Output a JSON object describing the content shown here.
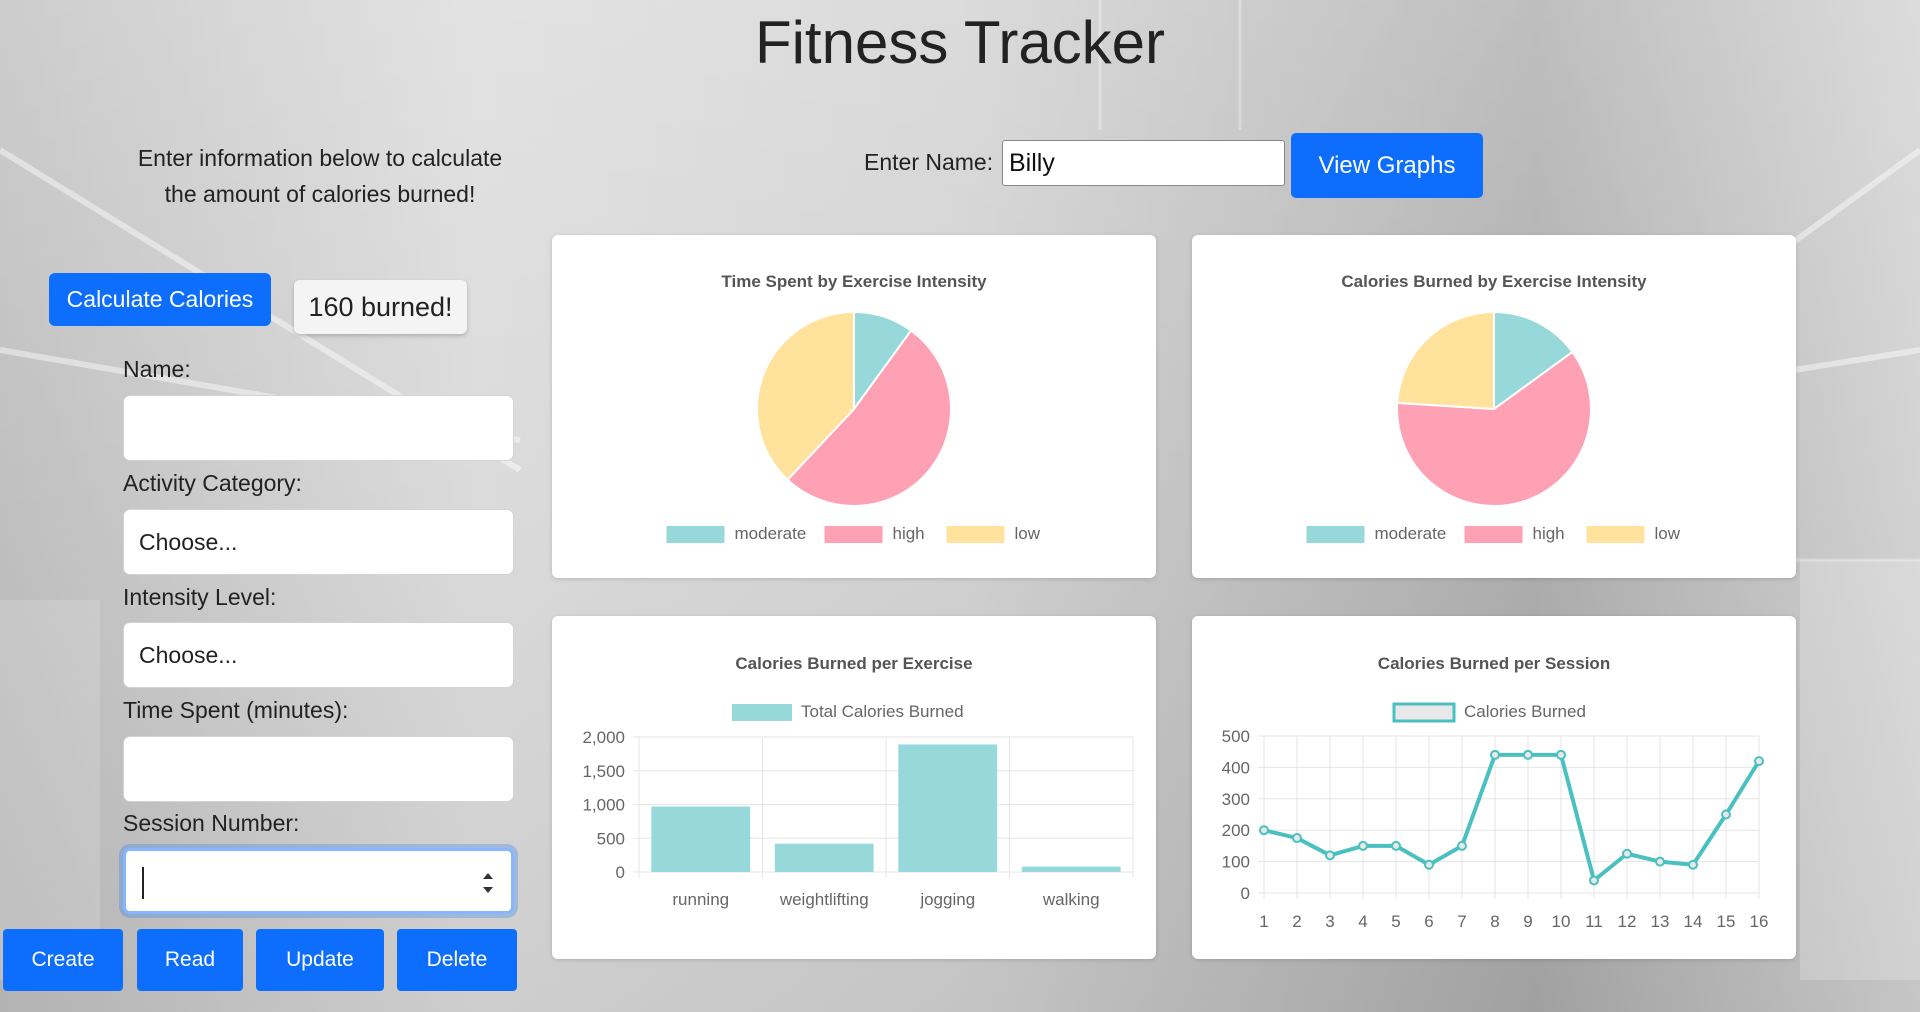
{
  "page": {
    "title": "Fitness Tracker"
  },
  "form": {
    "instructions_line1": "Enter information below to calculate",
    "instructions_line2": "the amount of calories burned!",
    "calculate_label": "Calculate Calories",
    "result_text": "160 burned!",
    "name_label": "Name:",
    "name_value": "",
    "activity_label": "Activity Category:",
    "activity_value": "Choose...",
    "intensity_label": "Intensity Level:",
    "intensity_value": "Choose...",
    "time_label": "Time Spent (minutes):",
    "time_value": "",
    "session_label": "Session Number:",
    "session_value": ""
  },
  "crud": {
    "create": "Create",
    "read": "Read",
    "update": "Update",
    "delete": "Delete"
  },
  "lookup": {
    "label": "Enter Name:",
    "value": "Billy",
    "button": "View Graphs"
  },
  "colors": {
    "teal": "#4bc0c0",
    "teal_fill": "rgba(75,192,192,0.6)",
    "pink": "#ff6384",
    "yellow": "#ffcd56",
    "primary": "#0d6efd"
  },
  "chart_data": [
    {
      "type": "pie",
      "title": "Time Spent by Exercise Intensity",
      "labels": [
        "moderate",
        "high",
        "low"
      ],
      "values": [
        10,
        52,
        38
      ],
      "colors": [
        "#97d9db",
        "#ffa1b4",
        "#ffe29b"
      ],
      "legend": "top-below-title"
    },
    {
      "type": "pie",
      "title": "Calories Burned by Exercise Intensity",
      "labels": [
        "moderate",
        "high",
        "low"
      ],
      "values": [
        15,
        61,
        24
      ],
      "colors": [
        "#97d9db",
        "#ffa1b4",
        "#ffe29b"
      ],
      "legend": "bottom"
    },
    {
      "type": "bar",
      "title": "Calories Burned per Exercise",
      "series_name": "Total Calories Burned",
      "categories": [
        "running",
        "weightlifting",
        "jogging",
        "walking"
      ],
      "values": [
        970,
        420,
        1890,
        80
      ],
      "ylim": [
        0,
        2000
      ],
      "yticks": [
        "2,000",
        "1,500",
        "1,000",
        "500",
        "0"
      ],
      "ytick_values": [
        2000,
        1500,
        1000,
        500,
        0
      ],
      "grid": true,
      "legend": "top"
    },
    {
      "type": "line",
      "title": "Calories Burned per Session",
      "series_name": "Calories Burned",
      "x": [
        "1",
        "2",
        "3",
        "4",
        "5",
        "6",
        "7",
        "8",
        "9",
        "10",
        "11",
        "12",
        "13",
        "14",
        "15",
        "16"
      ],
      "values": [
        200,
        175,
        120,
        150,
        150,
        90,
        150,
        440,
        440,
        440,
        40,
        125,
        100,
        90,
        250,
        420
      ],
      "ylim": [
        0,
        500
      ],
      "yticks": [
        "500",
        "400",
        "300",
        "200",
        "100",
        "0"
      ],
      "ytick_values": [
        500,
        400,
        300,
        200,
        100,
        0
      ],
      "grid": true,
      "legend": "top"
    }
  ]
}
